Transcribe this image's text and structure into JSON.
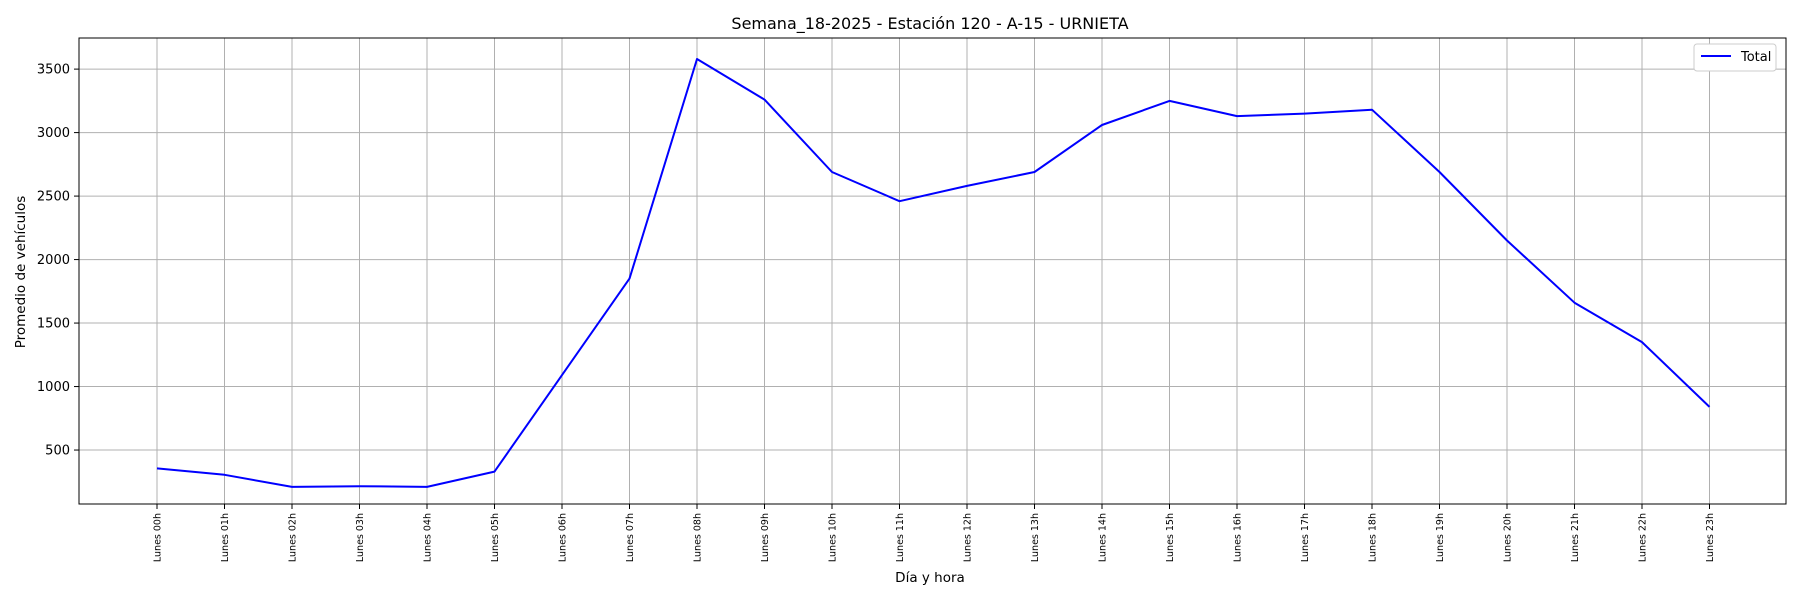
{
  "chart_data": {
    "type": "line",
    "title": "Semana_18-2025 - Estación 120 - A-15  - URNIETA",
    "xlabel": "Día y hora",
    "ylabel": "Promedio de vehículos",
    "categories": [
      "Lunes 00h",
      "Lunes 01h",
      "Lunes 02h",
      "Lunes 03h",
      "Lunes 04h",
      "Lunes 05h",
      "Lunes 06h",
      "Lunes 07h",
      "Lunes 08h",
      "Lunes 09h",
      "Lunes 10h",
      "Lunes 11h",
      "Lunes 12h",
      "Lunes 13h",
      "Lunes 14h",
      "Lunes 15h",
      "Lunes 16h",
      "Lunes 17h",
      "Lunes 18h",
      "Lunes 19h",
      "Lunes 20h",
      "Lunes 21h",
      "Lunes 22h",
      "Lunes 23h"
    ],
    "series": [
      {
        "name": "Total",
        "color": "#0000ff",
        "values": [
          355,
          305,
          210,
          215,
          210,
          330,
          1090,
          1850,
          3580,
          3260,
          2690,
          2460,
          2580,
          2690,
          3060,
          3250,
          3130,
          3150,
          3180,
          2690,
          2150,
          1660,
          1350,
          840
        ]
      }
    ],
    "yticks": [
      500,
      1000,
      1500,
      2000,
      2500,
      3000,
      3500
    ],
    "ylim": [
      75,
      3745
    ],
    "grid": true,
    "legend_position": "top-right"
  }
}
